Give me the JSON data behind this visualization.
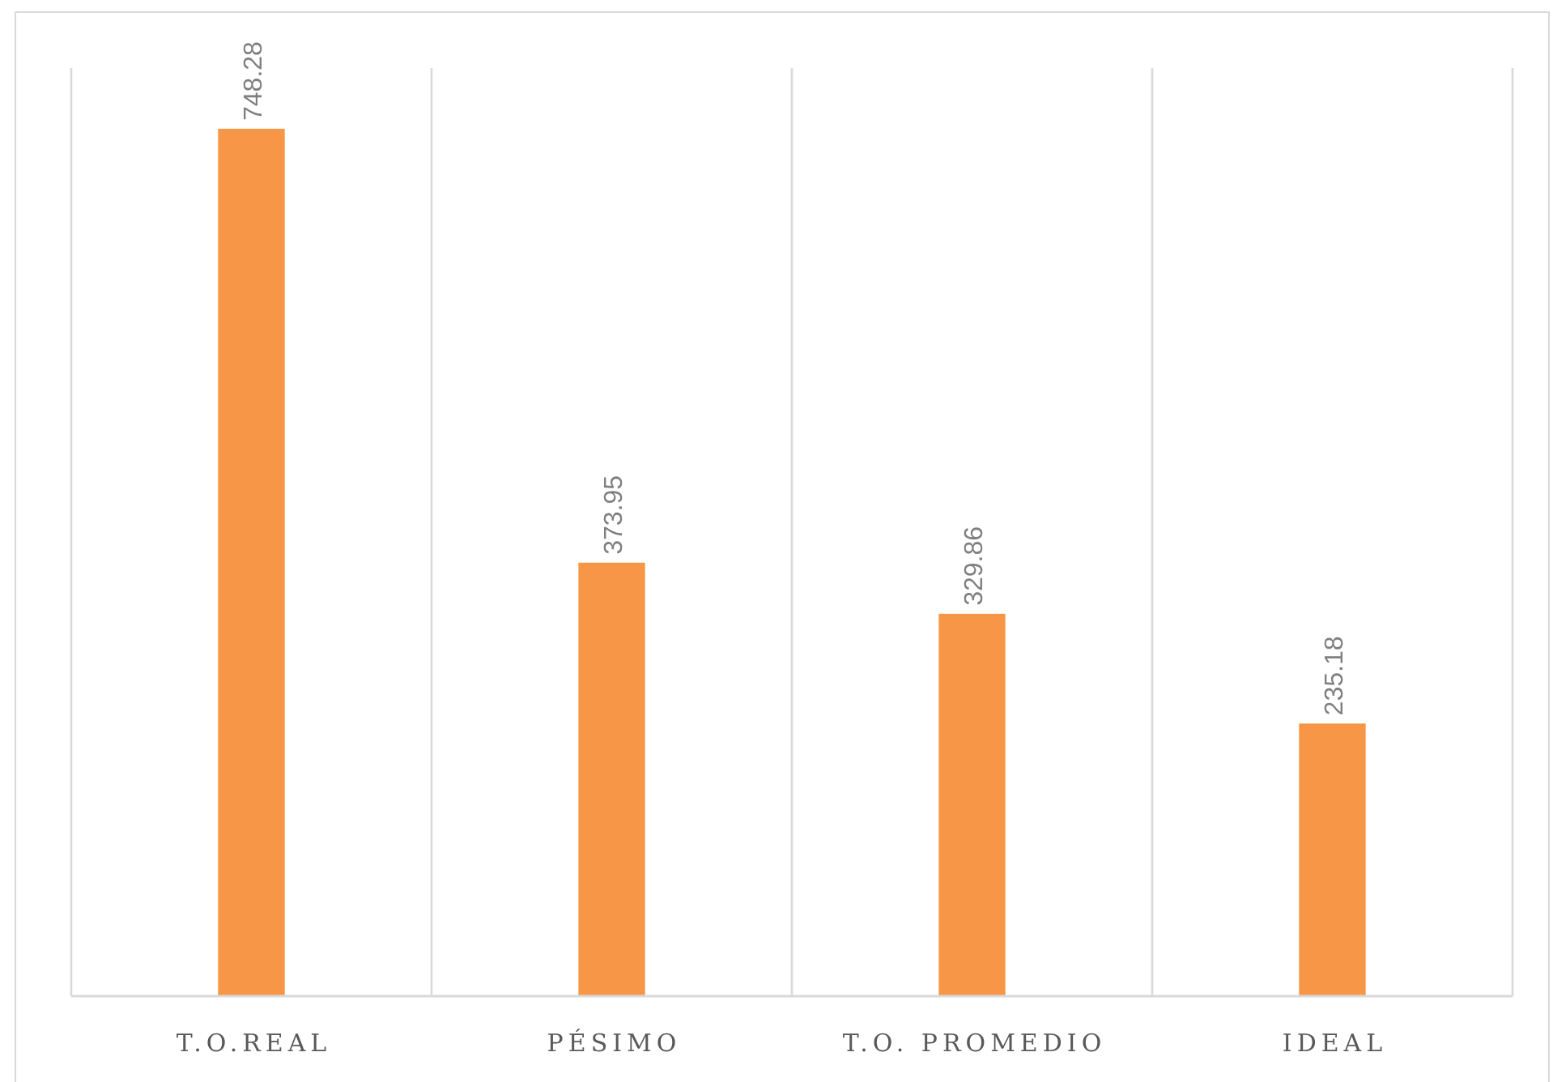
{
  "chart_data": {
    "type": "bar",
    "categories": [
      "T.O.REAL",
      "PÉSIMO",
      "T.O. PROMEDIO",
      "IDEAL"
    ],
    "values": [
      748.28,
      373.95,
      329.86,
      235.18
    ],
    "color": "#f79646",
    "data_labels": true,
    "grid": "x"
  }
}
